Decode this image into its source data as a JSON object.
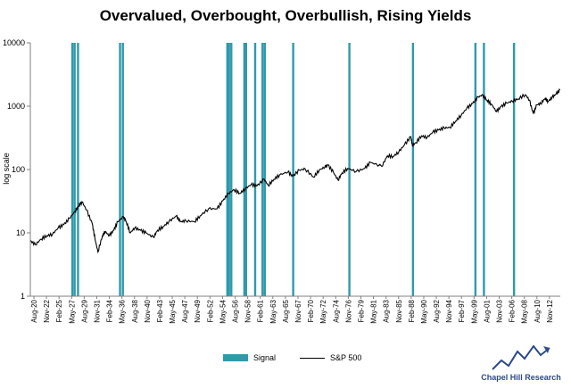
{
  "chart_data": {
    "type": "line",
    "title": "Overvalued, Overbought, Overbullish, Rising Yields",
    "ylabel": "log scale",
    "xlabel": "",
    "y_scale": "log",
    "ylim": [
      1,
      10000
    ],
    "y_ticks": [
      "1",
      "10",
      "100",
      "1000",
      "10000"
    ],
    "x_range": [
      "1920-08",
      "2013-12"
    ],
    "x_tick_labels": [
      "Aug-20",
      "Nov-22",
      "Feb-25",
      "May-27",
      "Aug-29",
      "Nov-31",
      "Feb-34",
      "May-36",
      "Aug-38",
      "Nov-40",
      "Feb-43",
      "May-45",
      "Aug-47",
      "Nov-49",
      "Feb-52",
      "May-54",
      "Aug-56",
      "Nov-58",
      "Feb-61",
      "May-63",
      "Aug-65",
      "Nov-67",
      "Feb-70",
      "May-72",
      "Aug-74",
      "Nov-76",
      "Feb-79",
      "May-81",
      "Aug-83",
      "Nov-85",
      "Feb-88",
      "May-90",
      "Aug-92",
      "Nov-94",
      "Feb-97",
      "May-99",
      "Aug-01",
      "Nov-03",
      "Feb-06",
      "May-08",
      "Aug-10",
      "Nov-12"
    ],
    "grid": false,
    "legend_position": "bottom",
    "series": [
      {
        "name": "S&P 500",
        "type": "line",
        "color": "#000000",
        "points": [
          [
            1920.6,
            7.5
          ],
          [
            1921.5,
            6.5
          ],
          [
            1922.5,
            8.0
          ],
          [
            1923.5,
            9.0
          ],
          [
            1924.5,
            9.5
          ],
          [
            1925.5,
            12.0
          ],
          [
            1926.5,
            13.5
          ],
          [
            1927.5,
            17.0
          ],
          [
            1928.5,
            22.0
          ],
          [
            1929.0,
            26.0
          ],
          [
            1929.7,
            31.0
          ],
          [
            1930.5,
            23.0
          ],
          [
            1931.5,
            14.0
          ],
          [
            1932.0,
            8.0
          ],
          [
            1932.5,
            5.0
          ],
          [
            1933.3,
            9.0
          ],
          [
            1933.8,
            10.5
          ],
          [
            1934.5,
            9.0
          ],
          [
            1935.3,
            11.0
          ],
          [
            1936.0,
            15.0
          ],
          [
            1937.0,
            18.0
          ],
          [
            1937.5,
            15.0
          ],
          [
            1938.2,
            10.0
          ],
          [
            1939.0,
            12.0
          ],
          [
            1940.0,
            11.0
          ],
          [
            1941.0,
            10.0
          ],
          [
            1942.3,
            8.5
          ],
          [
            1943.0,
            11.0
          ],
          [
            1944.0,
            12.5
          ],
          [
            1945.0,
            15.0
          ],
          [
            1946.3,
            18.5
          ],
          [
            1947.0,
            15.0
          ],
          [
            1948.0,
            15.5
          ],
          [
            1949.5,
            15.0
          ],
          [
            1950.5,
            18.5
          ],
          [
            1952.0,
            24.0
          ],
          [
            1953.5,
            24.0
          ],
          [
            1954.5,
            32.0
          ],
          [
            1955.5,
            42.0
          ],
          [
            1956.5,
            48.0
          ],
          [
            1957.5,
            42.0
          ],
          [
            1958.5,
            50.0
          ],
          [
            1959.5,
            58.0
          ],
          [
            1960.5,
            55.0
          ],
          [
            1961.8,
            70.0
          ],
          [
            1962.5,
            56.0
          ],
          [
            1963.5,
            70.0
          ],
          [
            1964.5,
            82.0
          ],
          [
            1966.0,
            92.0
          ],
          [
            1966.8,
            78.0
          ],
          [
            1968.0,
            98.0
          ],
          [
            1969.0,
            102.0
          ],
          [
            1970.5,
            76.0
          ],
          [
            1971.5,
            98.0
          ],
          [
            1972.5,
            110.0
          ],
          [
            1973.0,
            118.0
          ],
          [
            1974.0,
            90.0
          ],
          [
            1974.8,
            68.0
          ],
          [
            1975.5,
            88.0
          ],
          [
            1976.5,
            104.0
          ],
          [
            1978.0,
            93.0
          ],
          [
            1979.5,
            104.0
          ],
          [
            1980.5,
            130.0
          ],
          [
            1982.5,
            112.0
          ],
          [
            1983.5,
            165.0
          ],
          [
            1984.5,
            160.0
          ],
          [
            1985.5,
            190.0
          ],
          [
            1986.5,
            245.0
          ],
          [
            1987.6,
            330.0
          ],
          [
            1987.9,
            240.0
          ],
          [
            1988.5,
            265.0
          ],
          [
            1989.5,
            340.0
          ],
          [
            1990.5,
            320.0
          ],
          [
            1991.5,
            390.0
          ],
          [
            1992.5,
            420.0
          ],
          [
            1993.5,
            455.0
          ],
          [
            1994.5,
            460.0
          ],
          [
            1995.5,
            580.0
          ],
          [
            1996.5,
            720.0
          ],
          [
            1997.5,
            930.0
          ],
          [
            1998.5,
            1100.0
          ],
          [
            1999.5,
            1400.0
          ],
          [
            2000.3,
            1500.0
          ],
          [
            2001.0,
            1250.0
          ],
          [
            2001.8,
            1080.0
          ],
          [
            2002.7,
            820.0
          ],
          [
            2003.5,
            980.0
          ],
          [
            2004.5,
            1120.0
          ],
          [
            2005.5,
            1200.0
          ],
          [
            2006.5,
            1300.0
          ],
          [
            2007.8,
            1520.0
          ],
          [
            2008.5,
            1250.0
          ],
          [
            2009.2,
            760.0
          ],
          [
            2009.8,
            1050.0
          ],
          [
            2010.5,
            1100.0
          ],
          [
            2011.3,
            1330.0
          ],
          [
            2011.8,
            1180.0
          ],
          [
            2012.5,
            1380.0
          ],
          [
            2013.2,
            1550.0
          ],
          [
            2013.9,
            1800.0
          ]
        ]
      },
      {
        "name": "Signal",
        "type": "bar",
        "color": "#2f9aaa",
        "x": [
          1928.0,
          1928.4,
          1929.0,
          1936.4,
          1936.9,
          1955.3,
          1955.6,
          1956.0,
          1958.3,
          1958.6,
          1960.2,
          1961.5,
          1961.9,
          1966.9,
          1976.8,
          1988.0,
          1999.0,
          2000.5,
          2005.8
        ]
      }
    ]
  },
  "legend": {
    "signal_label": "Signal",
    "sp500_label": "S&P 500"
  },
  "logo": {
    "text": "Chapel Hill Research",
    "color": "#2c4a8a"
  }
}
